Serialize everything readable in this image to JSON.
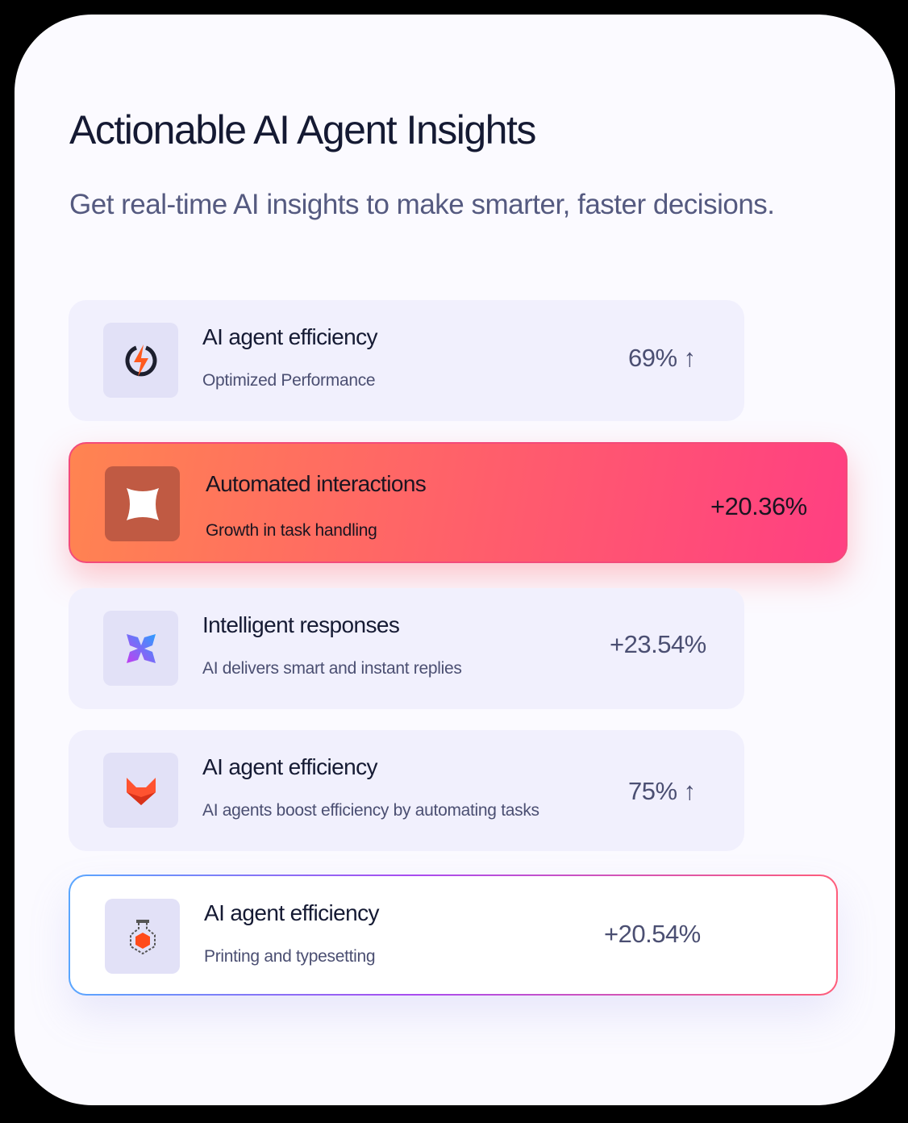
{
  "header": {
    "title": "Actionable AI Agent Insights",
    "subtitle": "Get real-time AI insights to make smarter, faster decisions."
  },
  "cards": [
    {
      "title": "AI agent efficiency",
      "subtitle": "Optimized Performance",
      "value": "69% ↑",
      "icon": "lightning-icon"
    },
    {
      "title": "Automated interactions",
      "subtitle": "Growth in task handling",
      "value": "+20.36%",
      "icon": "sparkle-square-icon",
      "highlighted": true
    },
    {
      "title": "Intelligent responses",
      "subtitle": "AI delivers smart and instant replies",
      "value": "+23.54%",
      "icon": "pinwheel-icon"
    },
    {
      "title": "AI agent efficiency",
      "subtitle": "AI agents boost efficiency by automating tasks",
      "value": "75% ↑",
      "icon": "fox-icon"
    },
    {
      "title": "AI agent efficiency",
      "subtitle": "Printing and typesetting",
      "value": "+20.54%",
      "icon": "flask-icon"
    }
  ],
  "colors": {
    "accent_gradient_start": "#ff8451",
    "accent_gradient_end": "#ff3f82",
    "text": "#151a33",
    "muted": "#4b4f72"
  }
}
